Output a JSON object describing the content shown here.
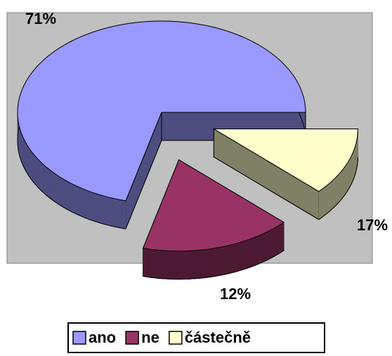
{
  "chart_data": {
    "type": "pie",
    "categories": [
      "ano",
      "ne",
      "částečně"
    ],
    "values": [
      71,
      17,
      12
    ],
    "value_labels": [
      "71%",
      "17%",
      "12%"
    ],
    "colors": [
      "#9999ff",
      "#993366",
      "#ffffcc"
    ],
    "legend": "bottom"
  }
}
